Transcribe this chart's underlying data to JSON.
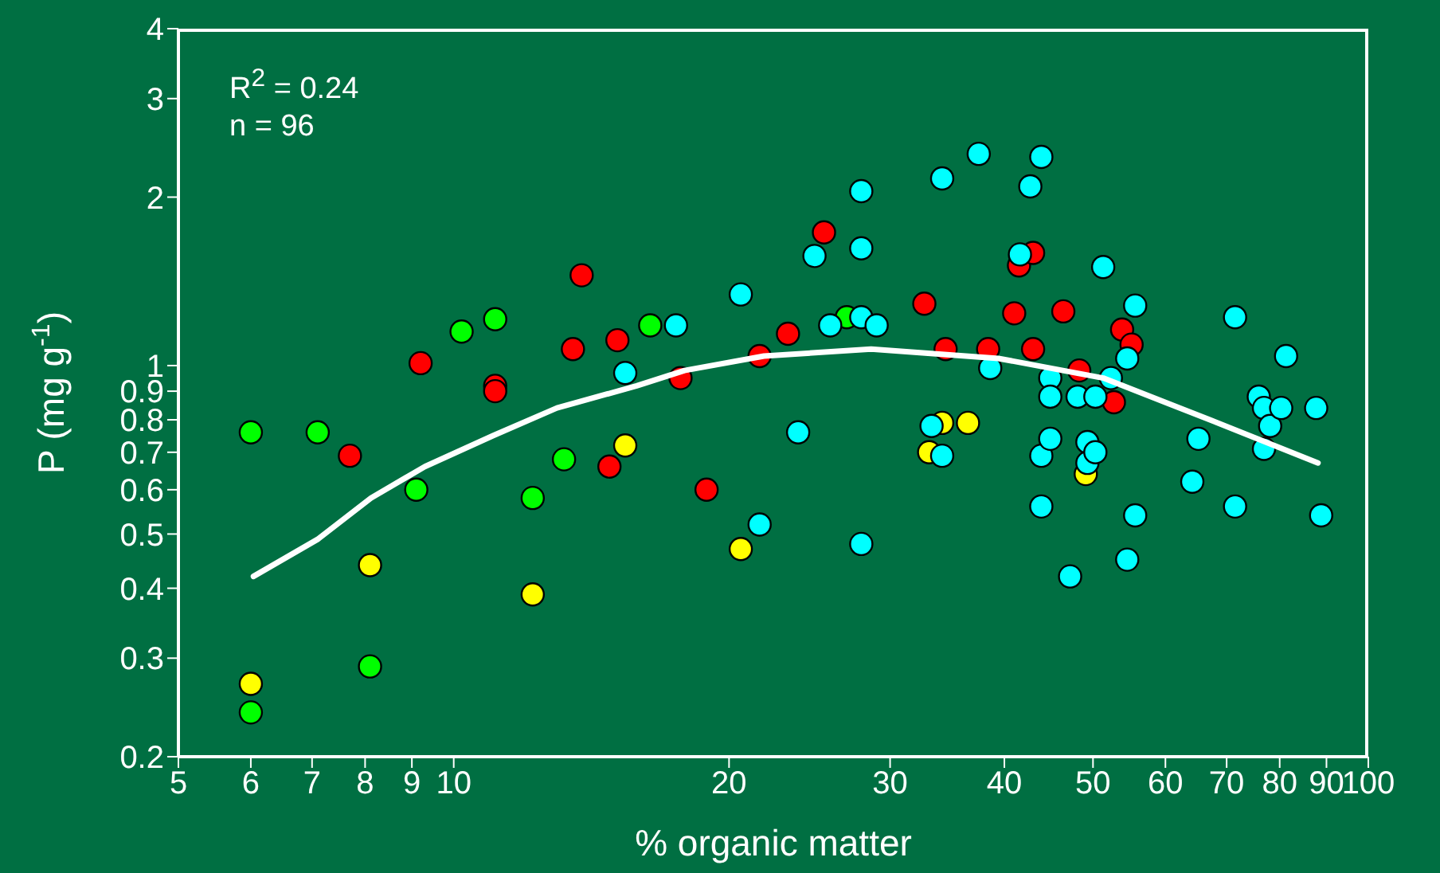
{
  "chart_data": {
    "type": "scatter",
    "xlabel": "% organic matter",
    "ylabel": "P (mg g$^{-1}$)",
    "annotations": [
      "R$^{2}$ = 0.24",
      "n = 96"
    ],
    "log": "xy",
    "grid": false,
    "marker": "circle",
    "xlim": [
      5,
      100
    ],
    "xticks": [
      5,
      6,
      7,
      8,
      9,
      10,
      20,
      30,
      40,
      50,
      60,
      70,
      80,
      90,
      100
    ],
    "ylim": [
      0.2,
      4
    ],
    "yticks": [
      0.2,
      0.3,
      0.4,
      0.5,
      0.6,
      0.7,
      0.8,
      0.9,
      1,
      2,
      3,
      4
    ],
    "series": [
      {
        "color": "#00ff00",
        "x": [
          6.0,
          7.1,
          9.1,
          8.1,
          6.0,
          10.2,
          11.1,
          13.2,
          12.2,
          16.4,
          26.9
        ],
        "values": [
          0.76,
          0.76,
          0.6,
          0.29,
          0.24,
          1.15,
          1.21,
          0.68,
          0.58,
          1.18,
          1.22
        ]
      },
      {
        "color": "#ffff00",
        "x": [
          6.0,
          8.1,
          12.2,
          15.4,
          20.6,
          33.1,
          34.2,
          36.5,
          49.1
        ],
        "values": [
          0.27,
          0.44,
          0.39,
          0.72,
          0.47,
          0.7,
          0.79,
          0.79,
          0.64
        ]
      },
      {
        "color": "#ff0000",
        "x": [
          7.7,
          9.2,
          11.1,
          11.1,
          13.5,
          13.8,
          14.8,
          15.1,
          17.7,
          18.9,
          21.6,
          23.2,
          25.4,
          32.7,
          34.5,
          38.4,
          41.0,
          41.5,
          43.0,
          43.0,
          46.4,
          48.3,
          52.7,
          53.8,
          55.1
        ],
        "values": [
          0.69,
          1.01,
          0.92,
          0.9,
          1.07,
          1.45,
          0.66,
          1.11,
          0.95,
          0.6,
          1.04,
          1.14,
          1.73,
          1.29,
          1.07,
          1.07,
          1.24,
          1.51,
          1.59,
          1.07,
          1.25,
          0.98,
          0.86,
          1.16,
          1.09
        ]
      },
      {
        "color": "#00ffff",
        "x": [
          15.4,
          17.5,
          20.6,
          21.6,
          23.8,
          24.8,
          25.8,
          27.9,
          27.9,
          27.9,
          27.9,
          29.0,
          33.3,
          34.2,
          34.2,
          37.5,
          38.6,
          41.6,
          42.7,
          43.9,
          43.9,
          43.9,
          44.9,
          44.9,
          44.9,
          47.2,
          48.1,
          49.3,
          49.3,
          50.3,
          50.3,
          51.3,
          52.3,
          54.5,
          54.5,
          55.6,
          55.6,
          64.2,
          65.2,
          71.5,
          71.5,
          75.9,
          76.9,
          76.9,
          78.1,
          80.3,
          81.3,
          87.7,
          88.8
        ],
        "values": [
          0.97,
          1.18,
          1.34,
          0.52,
          0.76,
          1.57,
          1.18,
          2.05,
          1.62,
          1.22,
          0.48,
          1.18,
          0.78,
          2.16,
          0.69,
          2.39,
          0.99,
          1.58,
          2.09,
          2.36,
          0.69,
          0.56,
          0.95,
          0.88,
          0.74,
          0.42,
          0.88,
          0.73,
          0.67,
          0.88,
          0.7,
          1.5,
          0.95,
          1.03,
          0.45,
          1.28,
          0.54,
          0.62,
          0.74,
          1.22,
          0.56,
          0.88,
          0.84,
          0.71,
          0.78,
          0.84,
          1.04,
          0.84,
          0.54
        ]
      },
      {
        "type": "line",
        "color": "#ffffff",
        "marker": "none",
        "x": [
          6.04,
          7.11,
          8.12,
          9.3,
          11.05,
          12.97,
          15.85,
          17.88,
          21.84,
          28.6,
          39.4,
          51.3,
          67.1,
          88.1
        ],
        "values": [
          0.42,
          0.49,
          0.58,
          0.66,
          0.75,
          0.84,
          0.92,
          0.98,
          1.04,
          1.07,
          1.03,
          0.95,
          0.8,
          0.67
        ]
      }
    ]
  }
}
